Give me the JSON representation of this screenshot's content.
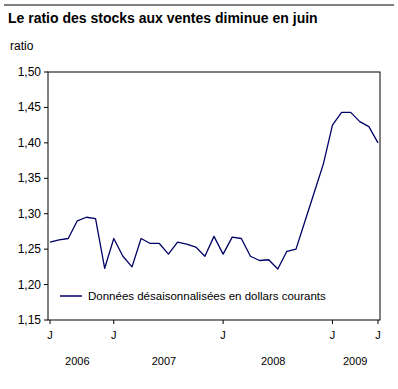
{
  "chart_data": {
    "type": "line",
    "title": "Le ratio des stocks aux ventes diminue en juin",
    "y_label": "ratio",
    "categories": [
      "J",
      null,
      null,
      null,
      null,
      null,
      null,
      "J",
      null,
      null,
      null,
      null,
      null,
      null,
      null,
      null,
      null,
      null,
      null,
      "J",
      null,
      null,
      null,
      null,
      null,
      null,
      null,
      null,
      null,
      null,
      null,
      "J",
      null,
      null,
      null,
      null,
      "J"
    ],
    "year_labels": [
      {
        "label": "2006",
        "from": 0,
        "to": 6
      },
      {
        "label": "2007",
        "from": 7,
        "to": 18
      },
      {
        "label": "2008",
        "from": 19,
        "to": 30
      },
      {
        "label": "2009",
        "from": 31,
        "to": 36
      }
    ],
    "series": [
      {
        "name": "Données désaisonnalisées en dollars courants",
        "color": "#000066",
        "values": [
          1.26,
          1.263,
          1.265,
          1.29,
          1.295,
          1.293,
          1.223,
          1.265,
          1.24,
          1.225,
          1.265,
          1.258,
          1.258,
          1.243,
          1.26,
          1.257,
          1.253,
          1.24,
          1.268,
          1.243,
          1.267,
          1.265,
          1.24,
          1.234,
          1.235,
          1.222,
          1.247,
          1.25,
          1.29,
          1.33,
          1.37,
          1.425,
          1.443,
          1.443,
          1.43,
          1.423,
          1.4
        ]
      }
    ],
    "ylim": [
      1.15,
      1.5
    ],
    "yticks": [
      {
        "value": 1.15,
        "label": "1,15"
      },
      {
        "value": 1.2,
        "label": "1,20"
      },
      {
        "value": 1.25,
        "label": "1,25"
      },
      {
        "value": 1.3,
        "label": "1,30"
      },
      {
        "value": 1.35,
        "label": "1,35"
      },
      {
        "value": 1.4,
        "label": "1,40"
      },
      {
        "value": 1.45,
        "label": "1,45"
      },
      {
        "value": 1.5,
        "label": "1,50"
      }
    ],
    "grid": false,
    "legend": "lower left"
  }
}
